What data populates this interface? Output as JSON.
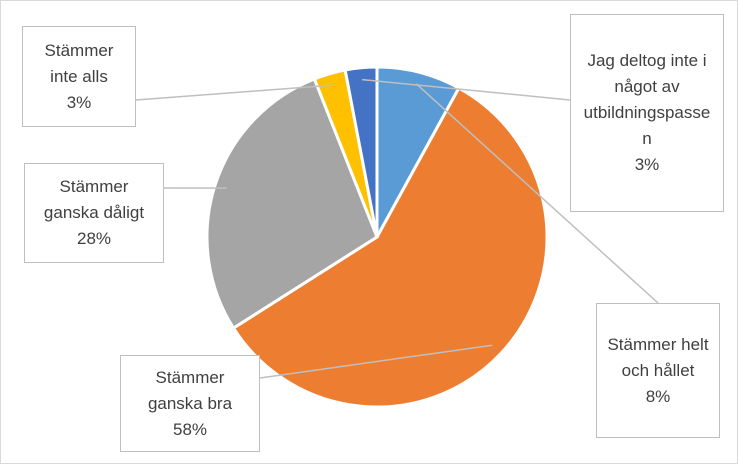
{
  "chart_data": {
    "type": "pie",
    "categories": [
      "Stämmer helt och hållet",
      "Stämmer ganska bra",
      "Stämmer ganska dåligt",
      "Stämmer inte alls",
      "Jag deltog inte i något av utbildningspassen"
    ],
    "values": [
      8,
      58,
      28,
      3,
      3
    ],
    "value_labels": [
      "8%",
      "58%",
      "28%",
      "3%",
      "3%"
    ],
    "colors": [
      "#5b9bd5",
      "#ed7d31",
      "#a5a5a5",
      "#ffc000",
      "#4472c4"
    ]
  }
}
